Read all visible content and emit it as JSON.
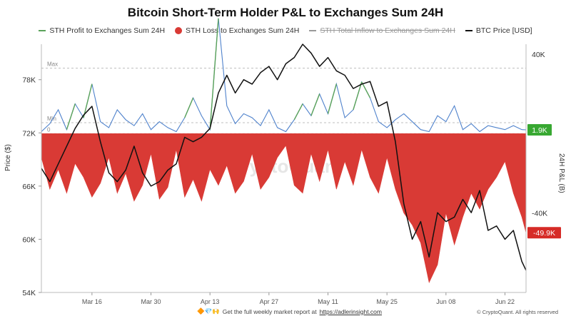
{
  "chart_data": {
    "type": "line",
    "title": "Bitcoin Short-Term Holder P&L to Exchanges Sum 24H",
    "ylabel_left": "Price ($)",
    "ylabel_right": "24H P&L (B)",
    "x_tick_labels": [
      "Mar 16",
      "Mar 30",
      "Apr 13",
      "Apr 27",
      "May 11",
      "May 25",
      "Jun 08",
      "Jun 22"
    ],
    "x_range": [
      "2024-03-04",
      "2024-06-27"
    ],
    "y_left_ticks": [
      "54K",
      "60K",
      "66K",
      "72K",
      "78K"
    ],
    "y_left_range": [
      54000,
      82000
    ],
    "y_right_ticks": [
      "40K",
      "-40K"
    ],
    "y_right_range": [
      -80000,
      45000
    ],
    "reference_lines": [
      {
        "label": "Max",
        "right_value": 33000
      },
      {
        "label": "Min",
        "right_value": 5500
      },
      {
        "label": "0",
        "right_value": 0
      }
    ],
    "end_badges": [
      {
        "label": "1.9K",
        "value": 1900,
        "color": "#38a832"
      },
      {
        "label": "-49.9K",
        "value": -49900,
        "color": "#d62b27"
      }
    ],
    "watermark": "CryptoQuant",
    "series": [
      {
        "name": "STH Profit to Exchanges Sum 24H",
        "color": "#5aa25a",
        "axis": "right",
        "x": [
          "2024-03-04",
          "2024-03-06",
          "2024-03-08",
          "2024-03-10",
          "2024-03-12",
          "2024-03-14",
          "2024-03-16",
          "2024-03-18",
          "2024-03-20",
          "2024-03-22",
          "2024-03-24",
          "2024-03-26",
          "2024-03-28",
          "2024-03-30",
          "2024-04-01",
          "2024-04-03",
          "2024-04-05",
          "2024-04-07",
          "2024-04-09",
          "2024-04-11",
          "2024-04-13",
          "2024-04-15",
          "2024-04-17",
          "2024-04-19",
          "2024-04-21",
          "2024-04-23",
          "2024-04-25",
          "2024-04-27",
          "2024-04-29",
          "2024-05-01",
          "2024-05-03",
          "2024-05-05",
          "2024-05-07",
          "2024-05-09",
          "2024-05-11",
          "2024-05-13",
          "2024-05-15",
          "2024-05-17",
          "2024-05-19",
          "2024-05-21",
          "2024-05-23",
          "2024-05-25",
          "2024-05-27",
          "2024-05-29",
          "2024-05-31",
          "2024-06-02",
          "2024-06-04",
          "2024-06-06",
          "2024-06-08",
          "2024-06-10",
          "2024-06-12",
          "2024-06-14",
          "2024-06-16",
          "2024-06-18",
          "2024-06-20",
          "2024-06-22",
          "2024-06-24",
          "2024-06-26",
          "2024-06-27"
        ],
        "values": [
          1,
          5,
          12,
          2,
          15,
          8,
          25,
          6,
          3,
          12,
          7,
          4,
          10,
          2,
          6,
          3,
          1,
          8,
          18,
          9,
          2,
          58,
          14,
          5,
          10,
          8,
          4,
          12,
          3,
          1,
          7,
          15,
          9,
          20,
          10,
          25,
          8,
          12,
          26,
          18,
          6,
          3,
          7,
          10,
          6,
          2,
          1,
          9,
          6,
          14,
          2,
          5,
          1,
          4,
          3,
          2,
          4,
          2,
          1.9
        ]
      },
      {
        "name": "STH Loss to Exchanges Sum 24H",
        "color": "#d93a35",
        "axis": "right",
        "x": [
          "2024-03-04",
          "2024-03-06",
          "2024-03-08",
          "2024-03-10",
          "2024-03-12",
          "2024-03-14",
          "2024-03-16",
          "2024-03-18",
          "2024-03-20",
          "2024-03-22",
          "2024-03-24",
          "2024-03-26",
          "2024-03-28",
          "2024-03-30",
          "2024-04-01",
          "2024-04-03",
          "2024-04-05",
          "2024-04-07",
          "2024-04-09",
          "2024-04-11",
          "2024-04-13",
          "2024-04-15",
          "2024-04-17",
          "2024-04-19",
          "2024-04-21",
          "2024-04-23",
          "2024-04-25",
          "2024-04-27",
          "2024-04-29",
          "2024-05-01",
          "2024-05-03",
          "2024-05-05",
          "2024-05-07",
          "2024-05-09",
          "2024-05-11",
          "2024-05-13",
          "2024-05-15",
          "2024-05-17",
          "2024-05-19",
          "2024-05-21",
          "2024-05-23",
          "2024-05-25",
          "2024-05-27",
          "2024-05-29",
          "2024-05-31",
          "2024-06-02",
          "2024-06-04",
          "2024-06-06",
          "2024-06-08",
          "2024-06-10",
          "2024-06-12",
          "2024-06-14",
          "2024-06-16",
          "2024-06-18",
          "2024-06-20",
          "2024-06-22",
          "2024-06-24",
          "2024-06-26",
          "2024-06-27"
        ],
        "values": [
          -12,
          -28,
          -18,
          -30,
          -15,
          -22,
          -32,
          -25,
          -12,
          -30,
          -20,
          -34,
          -26,
          -10,
          -33,
          -27,
          -8,
          -32,
          -23,
          -34,
          -18,
          -26,
          -16,
          -30,
          -24,
          -10,
          -28,
          -22,
          -12,
          -6,
          -26,
          -30,
          -10,
          -24,
          -8,
          -28,
          -14,
          -26,
          -8,
          -22,
          -30,
          -12,
          -28,
          -40,
          -46,
          -55,
          -75,
          -66,
          -40,
          -56,
          -42,
          -30,
          -38,
          -28,
          -22,
          -14,
          -30,
          -42,
          -49.9
        ]
      },
      {
        "name": "STH Total Inflow to Exchanges Sum 24H",
        "color": "#999999",
        "axis": "right",
        "hidden": true,
        "x": [],
        "values": []
      },
      {
        "name": "BTC Price [USD]",
        "color": "#111111",
        "axis": "left",
        "x": [
          "2024-03-04",
          "2024-03-06",
          "2024-03-08",
          "2024-03-10",
          "2024-03-12",
          "2024-03-14",
          "2024-03-16",
          "2024-03-18",
          "2024-03-20",
          "2024-03-22",
          "2024-03-24",
          "2024-03-26",
          "2024-03-28",
          "2024-03-30",
          "2024-04-01",
          "2024-04-03",
          "2024-04-05",
          "2024-04-07",
          "2024-04-09",
          "2024-04-11",
          "2024-04-13",
          "2024-04-15",
          "2024-04-17",
          "2024-04-19",
          "2024-04-21",
          "2024-04-23",
          "2024-04-25",
          "2024-04-27",
          "2024-04-29",
          "2024-05-01",
          "2024-05-03",
          "2024-05-05",
          "2024-05-07",
          "2024-05-09",
          "2024-05-11",
          "2024-05-13",
          "2024-05-15",
          "2024-05-17",
          "2024-05-19",
          "2024-05-21",
          "2024-05-23",
          "2024-05-25",
          "2024-05-27",
          "2024-05-29",
          "2024-05-31",
          "2024-06-02",
          "2024-06-04",
          "2024-06-06",
          "2024-06-08",
          "2024-06-10",
          "2024-06-12",
          "2024-06-14",
          "2024-06-16",
          "2024-06-18",
          "2024-06-20",
          "2024-06-22",
          "2024-06-24",
          "2024-06-26",
          "2024-06-27"
        ],
        "values": [
          68000,
          66500,
          68500,
          70500,
          72500,
          74000,
          75000,
          71000,
          67500,
          66500,
          67800,
          70500,
          67500,
          66000,
          66500,
          67800,
          68500,
          71500,
          71000,
          71500,
          72500,
          76500,
          78500,
          76500,
          78000,
          77500,
          78800,
          79500,
          78000,
          79800,
          80500,
          82000,
          81000,
          79500,
          80500,
          79000,
          78500,
          77000,
          77500,
          77800,
          75000,
          75500,
          71000,
          64000,
          60000,
          62000,
          58000,
          63000,
          62000,
          62500,
          64500,
          63000,
          65500,
          61000,
          61500,
          60000,
          61000,
          57500,
          56500
        ]
      }
    ]
  },
  "footer": {
    "icons": "🔶💎🙌",
    "text": "Get the full weekly market report at",
    "link": "https://adlerinsight.com"
  },
  "copyright": "© CryptoQuant. All rights reserved"
}
